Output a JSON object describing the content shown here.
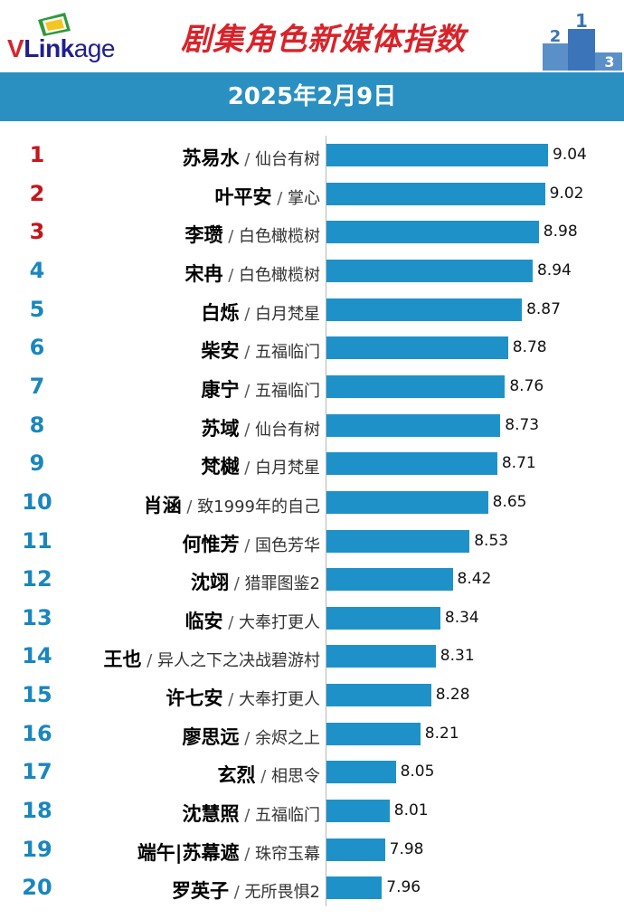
{
  "header": {
    "logo_text_v": "V",
    "logo_text_link": "Link",
    "logo_text_age": "age",
    "title": "剧集角色新媒体指数",
    "date": "2025年2月9日"
  },
  "colors": {
    "title_red": "#d8232a",
    "banner_blue": "#2a8fc1",
    "bar_blue": "#1e92c8",
    "rank_red": "#c4161c",
    "rank_blue": "#1a86be"
  },
  "chart_data": {
    "type": "bar",
    "orientation": "horizontal",
    "title": "剧集角色新媒体指数",
    "subtitle": "2025年2月9日",
    "xlim": [
      7.6,
      9.1
    ],
    "rows": [
      {
        "rank": "1",
        "name": "苏易水",
        "show": "仙台有树",
        "value": 9.04,
        "value_label": "9.04"
      },
      {
        "rank": "2",
        "name": "叶平安",
        "show": "掌心",
        "value": 9.02,
        "value_label": "9.02"
      },
      {
        "rank": "3",
        "name": "李瓒",
        "show": "白色橄榄树",
        "value": 8.98,
        "value_label": "8.98"
      },
      {
        "rank": "4",
        "name": "宋冉",
        "show": "白色橄榄树",
        "value": 8.94,
        "value_label": "8.94"
      },
      {
        "rank": "5",
        "name": "白烁",
        "show": "白月梵星",
        "value": 8.87,
        "value_label": "8.87"
      },
      {
        "rank": "6",
        "name": "柴安",
        "show": "五福临门",
        "value": 8.78,
        "value_label": "8.78"
      },
      {
        "rank": "7",
        "name": "康宁",
        "show": "五福临门",
        "value": 8.76,
        "value_label": "8.76"
      },
      {
        "rank": "8",
        "name": "苏域",
        "show": "仙台有树",
        "value": 8.73,
        "value_label": "8.73"
      },
      {
        "rank": "9",
        "name": "梵樾",
        "show": "白月梵星",
        "value": 8.71,
        "value_label": "8.71"
      },
      {
        "rank": "10",
        "name": "肖涵",
        "show": "致1999年的自己",
        "value": 8.65,
        "value_label": "8.65"
      },
      {
        "rank": "11",
        "name": "何惟芳",
        "show": "国色芳华",
        "value": 8.53,
        "value_label": "8.53"
      },
      {
        "rank": "12",
        "name": "沈翊",
        "show": "猎罪图鉴2",
        "value": 8.42,
        "value_label": "8.42"
      },
      {
        "rank": "13",
        "name": "临安",
        "show": "大奉打更人",
        "value": 8.34,
        "value_label": "8.34"
      },
      {
        "rank": "14",
        "name": "王也",
        "show": "异人之下之决战碧游村",
        "value": 8.31,
        "value_label": "8.31"
      },
      {
        "rank": "15",
        "name": "许七安",
        "show": "大奉打更人",
        "value": 8.28,
        "value_label": "8.28"
      },
      {
        "rank": "16",
        "name": "廖思远",
        "show": "余烬之上",
        "value": 8.21,
        "value_label": "8.21"
      },
      {
        "rank": "17",
        "name": "玄烈",
        "show": "相思令",
        "value": 8.05,
        "value_label": "8.05"
      },
      {
        "rank": "18",
        "name": "沈慧照",
        "show": "五福临门",
        "value": 8.01,
        "value_label": "8.01"
      },
      {
        "rank": "19",
        "name": "端午|苏幕遮",
        "show": "珠帘玉幕",
        "value": 7.98,
        "value_label": "7.98"
      },
      {
        "rank": "20",
        "name": "罗英子",
        "show": "无所畏惧2",
        "value": 7.96,
        "value_label": "7.96"
      }
    ]
  }
}
